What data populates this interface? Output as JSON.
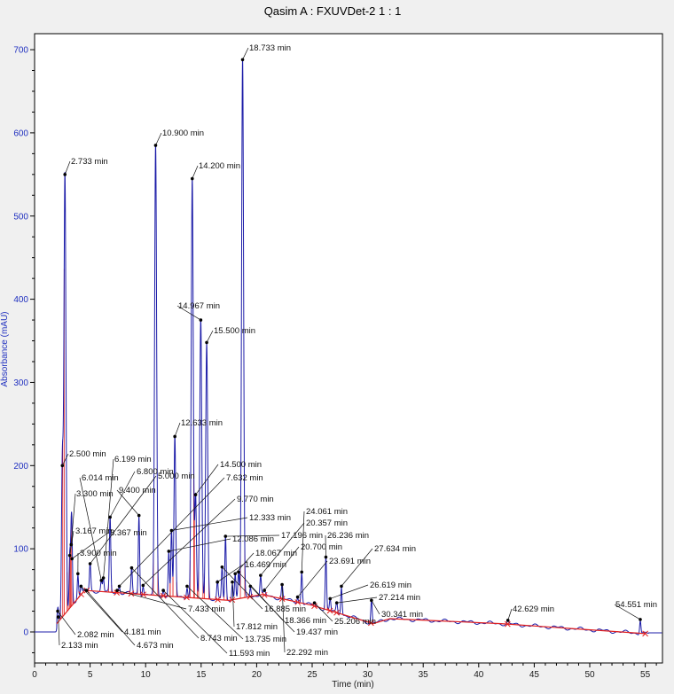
{
  "colors": {
    "background": "#f0f0f0",
    "plot_background": "#ffffff",
    "trace": "#1c1ca8",
    "baseline": "#e02020",
    "y_axis": "#1f2fbf",
    "axis": "#000000",
    "leader": "#111111"
  },
  "chart_data": {
    "type": "line",
    "title": "Qasim A : FXUVDet-2 1 : 1",
    "xlabel": "Time (min)",
    "ylabel": "Absorbance (mAU)",
    "xlim": [
      0,
      57
    ],
    "ylim": [
      -35,
      730
    ],
    "xticks": [
      {
        "value": 0,
        "label": "0"
      },
      {
        "value": 5,
        "label": "5"
      },
      {
        "value": 10,
        "label": "10"
      },
      {
        "value": 15,
        "label": "15"
      },
      {
        "value": 20,
        "label": "20"
      },
      {
        "value": 25,
        "label": "25"
      },
      {
        "value": 30,
        "label": "30"
      },
      {
        "value": 35,
        "label": "35"
      },
      {
        "value": 40,
        "label": "40"
      },
      {
        "value": 45,
        "label": "45"
      },
      {
        "value": 50,
        "label": "50"
      },
      {
        "value": 55,
        "label": "55"
      }
    ],
    "yticks": [
      {
        "value": 0,
        "label": "0"
      },
      {
        "value": 100,
        "label": "100"
      },
      {
        "value": 200,
        "label": "200"
      },
      {
        "value": 300,
        "label": "300"
      },
      {
        "value": 400,
        "label": "400"
      },
      {
        "value": 500,
        "label": "500"
      },
      {
        "value": 600,
        "label": "600"
      },
      {
        "value": 700,
        "label": "700"
      }
    ],
    "grid": false,
    "legend": "none",
    "baseline_points": [
      {
        "x": 2.0,
        "y": 10
      },
      {
        "x": 4.5,
        "y": 50
      },
      {
        "x": 17.5,
        "y": 38
      },
      {
        "x": 20.5,
        "y": 45
      },
      {
        "x": 25.0,
        "y": 32
      },
      {
        "x": 30.5,
        "y": 10
      },
      {
        "x": 32.0,
        "y": 16
      },
      {
        "x": 42.0,
        "y": 10
      },
      {
        "x": 55.0,
        "y": -2
      }
    ],
    "peaks": [
      {
        "rt": 2.082,
        "height": 25,
        "label": "2.082 min"
      },
      {
        "rt": 2.133,
        "height": 18,
        "label": "2.133 min"
      },
      {
        "rt": 2.5,
        "height": 200,
        "label": "2.500 min"
      },
      {
        "rt": 2.733,
        "height": 550,
        "label": "2.733 min"
      },
      {
        "rt": 3.167,
        "height": 92,
        "label": "3.167 min"
      },
      {
        "rt": 3.3,
        "height": 105,
        "label": "3.300 min"
      },
      {
        "rt": 3.367,
        "height": 88,
        "label": "3.367 min"
      },
      {
        "rt": 3.9,
        "height": 70,
        "label": "3.900 min"
      },
      {
        "rt": 4.181,
        "height": 55,
        "label": "4.181 min"
      },
      {
        "rt": 4.673,
        "height": 50,
        "label": "4.673 min"
      },
      {
        "rt": 5.0,
        "height": 82,
        "label": "5.000 min"
      },
      {
        "rt": 6.014,
        "height": 62,
        "label": "6.014 min"
      },
      {
        "rt": 6.199,
        "height": 65,
        "label": "6.199 min"
      },
      {
        "rt": 6.8,
        "height": 138,
        "label": "6.800 min"
      },
      {
        "rt": 7.433,
        "height": 50,
        "label": "7.433 min"
      },
      {
        "rt": 7.632,
        "height": 55,
        "label": "7.632 min"
      },
      {
        "rt": 8.743,
        "height": 77,
        "label": "8.743 min"
      },
      {
        "rt": 9.4,
        "height": 140,
        "label": "9.400 min"
      },
      {
        "rt": 9.77,
        "height": 56,
        "label": "9.770 min"
      },
      {
        "rt": 10.9,
        "height": 585,
        "label": "10.900 min"
      },
      {
        "rt": 11.593,
        "height": 50,
        "label": "11.593 min"
      },
      {
        "rt": 12.086,
        "height": 97,
        "label": "12.086 min"
      },
      {
        "rt": 12.333,
        "height": 122,
        "label": "12.333 min"
      },
      {
        "rt": 12.633,
        "height": 235,
        "label": "12.633 min"
      },
      {
        "rt": 13.735,
        "height": 55,
        "label": "13.735 min"
      },
      {
        "rt": 14.2,
        "height": 545,
        "label": "14.200 min"
      },
      {
        "rt": 14.5,
        "height": 165,
        "label": "14.500 min"
      },
      {
        "rt": 14.967,
        "height": 375,
        "label": "14.967 min"
      },
      {
        "rt": 15.5,
        "height": 348,
        "label": "15.500 min"
      },
      {
        "rt": 16.469,
        "height": 60,
        "label": "16.469 min"
      },
      {
        "rt": 16.885,
        "height": 78,
        "label": "16.885 min"
      },
      {
        "rt": 17.196,
        "height": 115,
        "label": "17.196 min"
      },
      {
        "rt": 17.812,
        "height": 60,
        "label": "17.812 min"
      },
      {
        "rt": 18.067,
        "height": 70,
        "label": "18.067 min"
      },
      {
        "rt": 18.366,
        "height": 72,
        "label": "18.366 min"
      },
      {
        "rt": 18.733,
        "height": 688,
        "label": "18.733 min"
      },
      {
        "rt": 19.437,
        "height": 55,
        "label": "19.437 min"
      },
      {
        "rt": 20.357,
        "height": 68,
        "label": "20.357 min"
      },
      {
        "rt": 20.7,
        "height": 50,
        "label": "20.700 min"
      },
      {
        "rt": 22.292,
        "height": 57,
        "label": "22.292 min"
      },
      {
        "rt": 23.691,
        "height": 42,
        "label": "23.691 min"
      },
      {
        "rt": 24.061,
        "height": 72,
        "label": "24.061 min"
      },
      {
        "rt": 25.206,
        "height": 35,
        "label": "25.206 min"
      },
      {
        "rt": 26.236,
        "height": 90,
        "label": "26.236 min"
      },
      {
        "rt": 26.619,
        "height": 40,
        "label": "26.619 min"
      },
      {
        "rt": 27.214,
        "height": 35,
        "label": "27.214 min"
      },
      {
        "rt": 27.634,
        "height": 55,
        "label": "27.634 min"
      },
      {
        "rt": 30.341,
        "height": 38,
        "label": "30.341 min"
      },
      {
        "rt": 42.629,
        "height": 14,
        "label": "42.629 min"
      },
      {
        "rt": 54.551,
        "height": 15,
        "label": "54.551 min"
      }
    ]
  }
}
